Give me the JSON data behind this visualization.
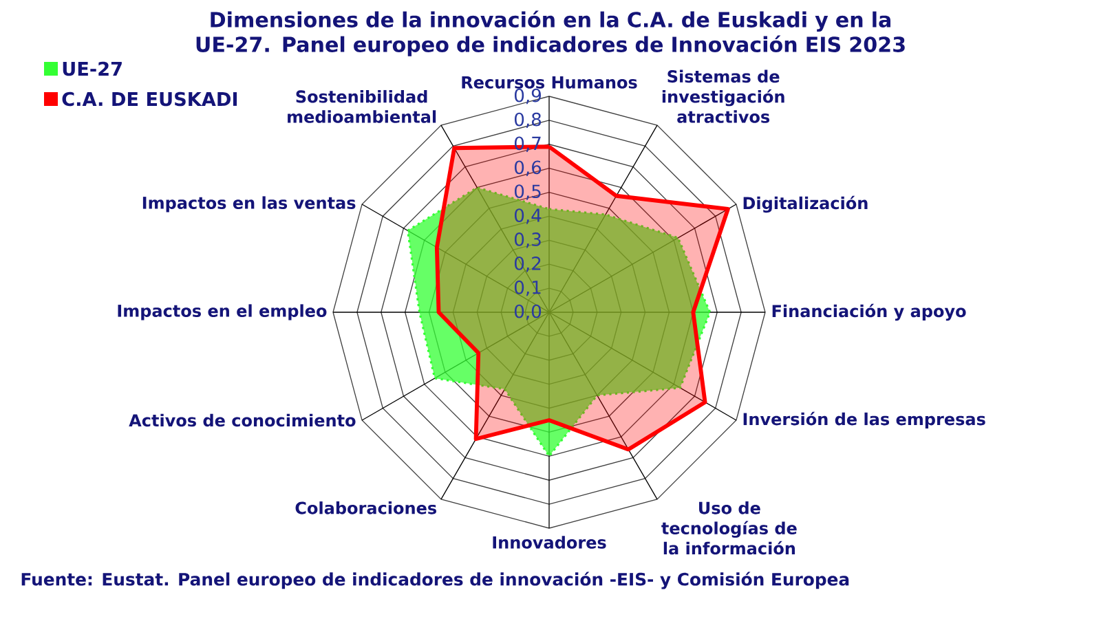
{
  "chart_data": {
    "type": "radar",
    "title": "Dimensiones de la innovación en la C.A. de Euskadi y en la UE-27. Panel europeo de indicadores de Innovación EIS 2023",
    "categories": [
      "Recursos Humanos",
      "Sistemas de investigación atractivos",
      "Digitalización",
      "Financiación y apoyo",
      "Inversión de las empresas",
      "Uso de tecnologías de la información",
      "Innovadores",
      "Colaboraciones",
      "Activos de conocimiento",
      "Impactos en el empleo",
      "Impactos en las ventas",
      "Sostenibilidad medioambiental"
    ],
    "series": [
      {
        "name": "UE-27",
        "color": "#33ff33",
        "line_style": "dotted",
        "values": [
          0.43,
          0.47,
          0.62,
          0.67,
          0.63,
          0.4,
          0.6,
          0.37,
          0.55,
          0.54,
          0.68,
          0.6
        ]
      },
      {
        "name": "C.A. DE EUSKADI",
        "color": "#ff0000",
        "line_style": "solid",
        "values": [
          0.69,
          0.56,
          0.86,
          0.6,
          0.75,
          0.66,
          0.45,
          0.61,
          0.34,
          0.46,
          0.54,
          0.79
        ]
      }
    ],
    "ylim": [
      0,
      0.9
    ],
    "yticks": [
      {
        "value": 0,
        "label": "0,0"
      },
      {
        "value": 0.1,
        "label": "0,1"
      },
      {
        "value": 0.2,
        "label": "0,2"
      },
      {
        "value": 0.3,
        "label": "0,3"
      },
      {
        "value": 0.4,
        "label": "0,4"
      },
      {
        "value": 0.5,
        "label": "0,5"
      },
      {
        "value": 0.6,
        "label": "0,6"
      },
      {
        "value": 0.7,
        "label": "0,7"
      },
      {
        "value": 0.8,
        "label": "0,8"
      },
      {
        "value": 0.9,
        "label": "0,9"
      }
    ],
    "grid": true,
    "legend": "top left",
    "annotations": [
      "Fuente: Eustat. Panel europeo de indicadores de innovación -EIS- y Comisión Europea"
    ]
  }
}
